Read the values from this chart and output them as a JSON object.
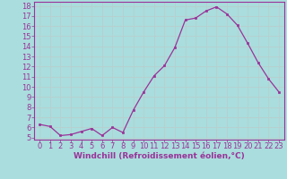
{
  "x": [
    0,
    1,
    2,
    3,
    4,
    5,
    6,
    7,
    8,
    9,
    10,
    11,
    12,
    13,
    14,
    15,
    16,
    17,
    18,
    19,
    20,
    21,
    22,
    23
  ],
  "y": [
    6.3,
    6.1,
    5.2,
    5.3,
    5.6,
    5.9,
    5.2,
    6.0,
    5.5,
    7.7,
    9.5,
    11.1,
    12.1,
    13.9,
    16.6,
    16.8,
    17.5,
    17.9,
    17.2,
    16.1,
    14.3,
    12.4,
    10.8,
    9.5
  ],
  "xlim": [
    -0.5,
    23.5
  ],
  "ylim": [
    4.8,
    18.4
  ],
  "yticks": [
    5,
    6,
    7,
    8,
    9,
    10,
    11,
    12,
    13,
    14,
    15,
    16,
    17,
    18
  ],
  "xticks": [
    0,
    1,
    2,
    3,
    4,
    5,
    6,
    7,
    8,
    9,
    10,
    11,
    12,
    13,
    14,
    15,
    16,
    17,
    18,
    19,
    20,
    21,
    22,
    23
  ],
  "xlabel": "Windchill (Refroidissement éolien,°C)",
  "line_color": "#993399",
  "marker_color": "#993399",
  "bg_color": "#aadddd",
  "grid_color": "#bbcccc",
  "tick_fontsize": 6,
  "xlabel_fontsize": 6.5
}
